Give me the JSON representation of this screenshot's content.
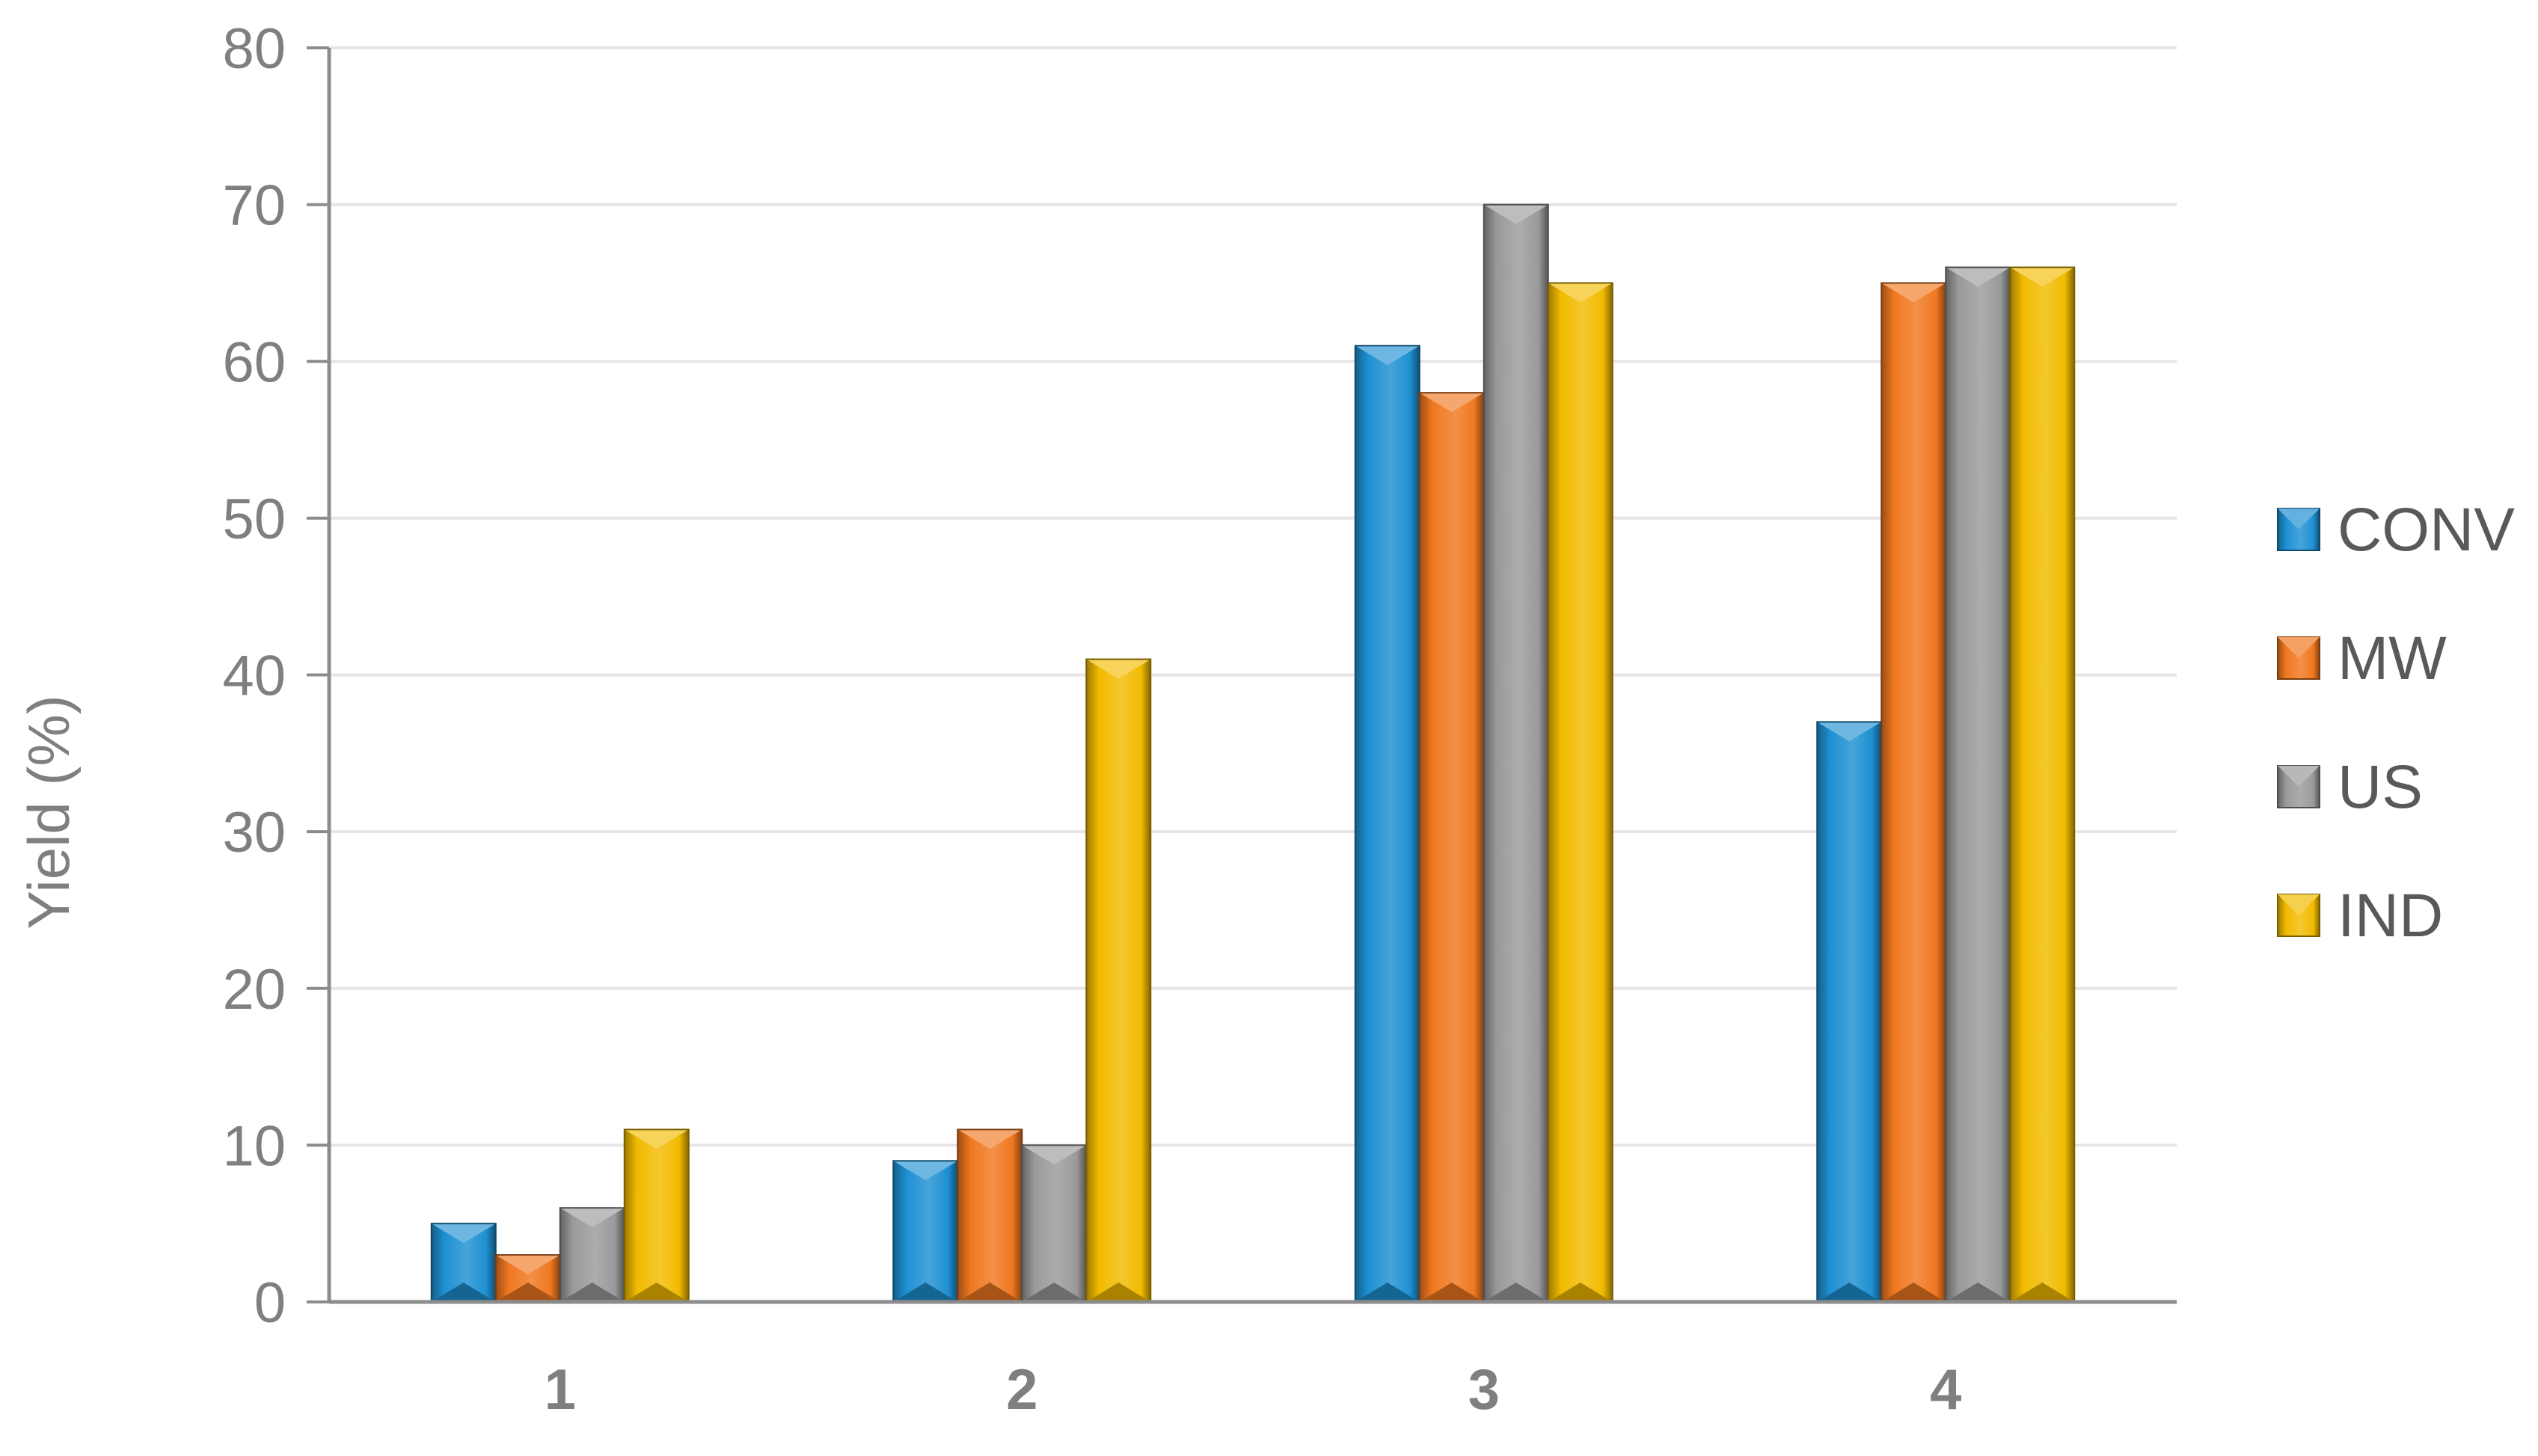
{
  "chart_data": {
    "type": "bar",
    "title": "",
    "xlabel": "",
    "ylabel": "Yield (%)",
    "ylim": [
      0,
      80
    ],
    "yticks": [
      0,
      10,
      20,
      30,
      40,
      50,
      60,
      70,
      80
    ],
    "categories": [
      "1",
      "2",
      "3",
      "4"
    ],
    "grid": true,
    "legend_position": "right",
    "series": [
      {
        "name": "CONV",
        "color": "#1E90D2",
        "values": [
          5,
          9,
          61,
          37
        ]
      },
      {
        "name": "MW",
        "color": "#F07820",
        "values": [
          3,
          11,
          58,
          65
        ]
      },
      {
        "name": "US",
        "color": "#9A9A9A",
        "values": [
          6,
          10,
          70,
          66
        ]
      },
      {
        "name": "IND",
        "color": "#F2BB00",
        "values": [
          11,
          41,
          65,
          66
        ]
      }
    ]
  }
}
